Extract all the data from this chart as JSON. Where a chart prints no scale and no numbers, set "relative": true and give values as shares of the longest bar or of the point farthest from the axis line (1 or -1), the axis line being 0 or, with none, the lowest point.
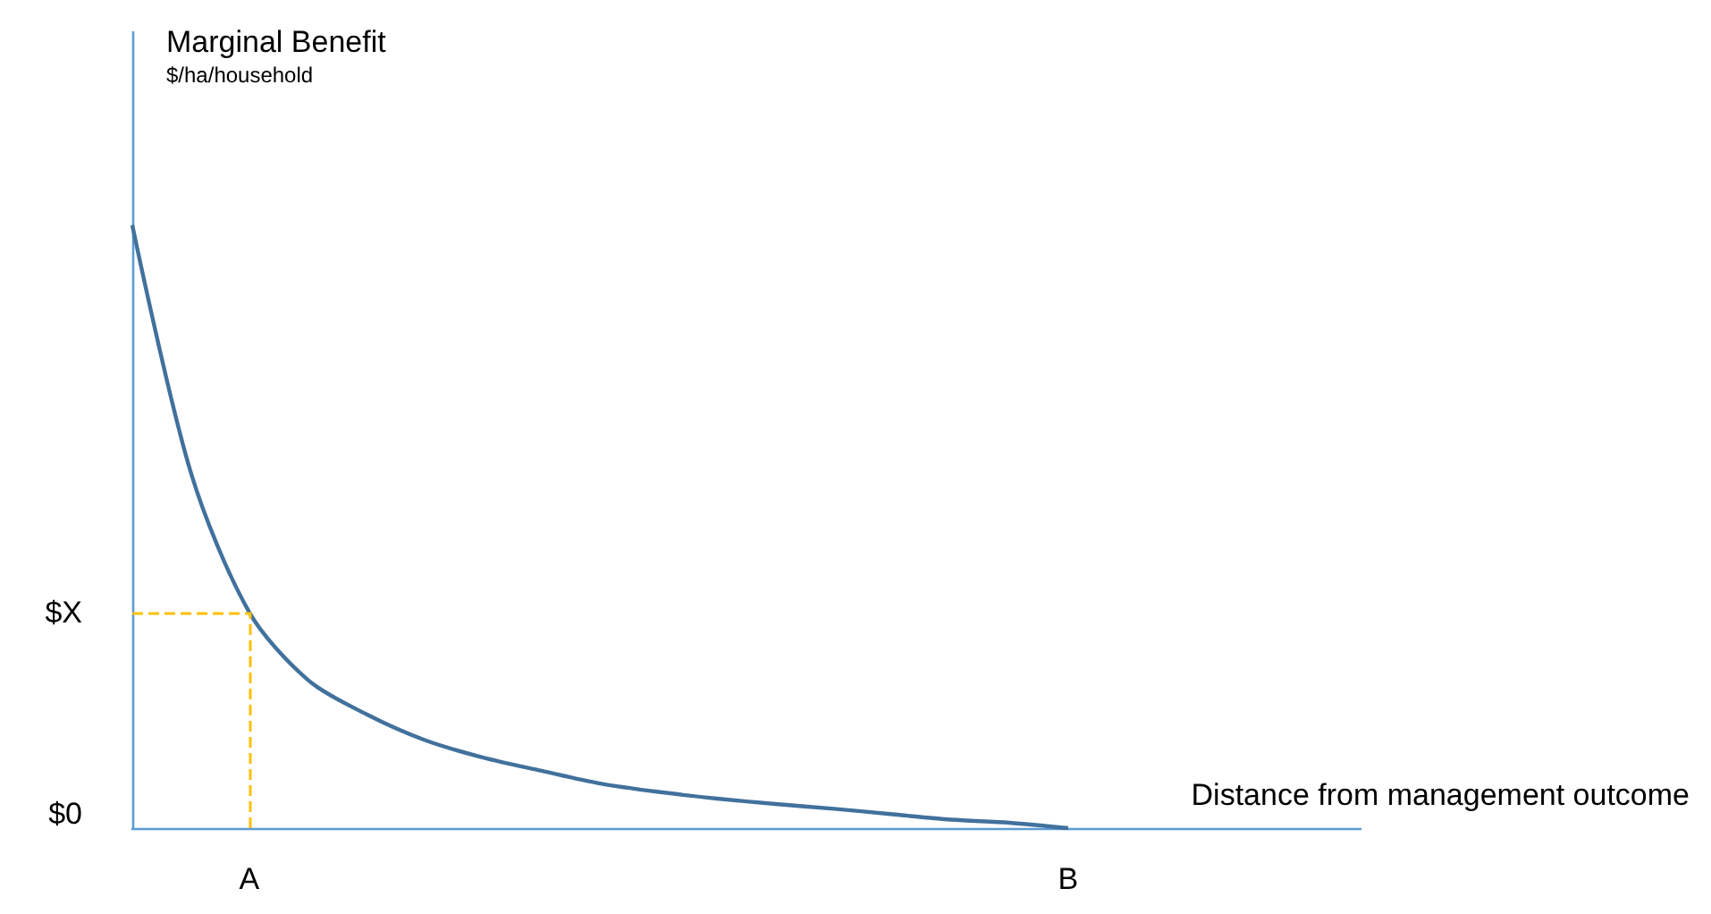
{
  "chart_data": {
    "type": "line",
    "relative": true,
    "title": "Marginal Benefit",
    "subtitle": "$/ha/household",
    "xlabel": "Distance from management outcome",
    "categories": [
      null,
      null,
      "A",
      null,
      null,
      null,
      null,
      null,
      null,
      null,
      null,
      null,
      null,
      null,
      null,
      null,
      "B",
      null,
      null,
      null,
      null,
      null
    ],
    "series": [
      {
        "color": "#41719c",
        "values": [
          1.0,
          0.59,
          0.358,
          0.246,
          0.189,
          0.146,
          0.117,
          0.095,
          0.074,
          0.06,
          0.049,
          0.04,
          0.032,
          0.023,
          0.014,
          0.009,
          0,
          null,
          null,
          null,
          null,
          null
        ]
      }
    ],
    "ref_lines": [
      {
        "axis": "y",
        "value": 0.358,
        "label": "$X",
        "color": "#ffc000",
        "line_style": "dashed"
      },
      {
        "axis": "x",
        "value": "A",
        "color": "#ffc000",
        "line_style": "dashed"
      }
    ],
    "annotations": [
      "$0"
    ],
    "marker": "none"
  }
}
